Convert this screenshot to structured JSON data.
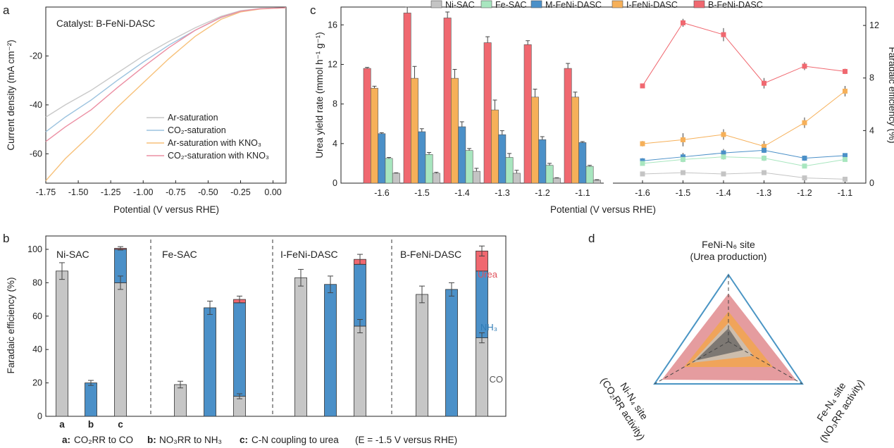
{
  "colors": {
    "ni_sac": "#c4c4c4",
    "fe_sac": "#a8e6bf",
    "m_fe_ni": "#4b90c8",
    "i_fe_ni": "#f6b059",
    "b_fe_ni": "#f06870",
    "ar": "#c9c9c9",
    "co2": "#9cc3df",
    "ar_kno3": "#f7c17a",
    "co2_kno3": "#ec8fa3",
    "co": "#c6c6c6",
    "nh3": "#4b90c8",
    "urea": "#f06870",
    "d_outline": "#4a95c4"
  },
  "panel_a": {
    "label": "a",
    "annotation": "Catalyst: B-FeNi-DASC",
    "chart_data": {
      "type": "line",
      "xlabel": "Potential (V versus RHE)",
      "ylabel": "Current density (mA cm⁻²)",
      "xlim": [
        -1.75,
        0.1
      ],
      "ylim": [
        -72,
        0
      ],
      "xticks": [
        "-1.75",
        "-1.50",
        "-1.25",
        "-1.00",
        "-0.75",
        "-0.50",
        "-0.25",
        "0.00"
      ],
      "yticks": [
        "-20",
        "-40",
        "-60"
      ],
      "series": [
        {
          "name": "Ar-saturation",
          "x": [
            -1.75,
            -1.6,
            -1.4,
            -1.2,
            -1.0,
            -0.8,
            -0.6,
            -0.4,
            -0.25,
            -0.1,
            0.1
          ],
          "y": [
            -45,
            -40,
            -34,
            -27,
            -20,
            -14,
            -8.5,
            -3.8,
            -1.5,
            -0.6,
            -0.3
          ]
        },
        {
          "name": "CO₂-saturation",
          "x": [
            -1.75,
            -1.6,
            -1.4,
            -1.2,
            -1.0,
            -0.8,
            -0.6,
            -0.4,
            -0.25,
            -0.1,
            0.1
          ],
          "y": [
            -51,
            -45,
            -38,
            -30,
            -22.5,
            -15.5,
            -9.5,
            -4.3,
            -1.8,
            -0.7,
            -0.3
          ]
        },
        {
          "name": "Ar-saturation with KNO₃",
          "x": [
            -1.75,
            -1.6,
            -1.4,
            -1.2,
            -1.0,
            -0.8,
            -0.6,
            -0.4,
            -0.25,
            -0.1,
            0.1
          ],
          "y": [
            -71,
            -62,
            -52,
            -41,
            -31,
            -21,
            -12,
            -5,
            -2,
            -0.8,
            -0.3
          ]
        },
        {
          "name": "CO₂-saturation with KNO₃",
          "x": [
            -1.75,
            -1.6,
            -1.4,
            -1.2,
            -1.0,
            -0.8,
            -0.6,
            -0.4,
            -0.25,
            -0.1,
            0.1
          ],
          "y": [
            -55,
            -49,
            -42,
            -33,
            -24.5,
            -16.5,
            -9.5,
            -4.2,
            -1.7,
            -0.7,
            -0.3
          ]
        }
      ]
    }
  },
  "panel_c": {
    "label": "c",
    "xlabel": "Potential (V versus RHE)",
    "legend": [
      "Ni-SAC",
      "Fe-SAC",
      "M-FeNi-DASC",
      "I-FeNi-DASC",
      "B-FeNi-DASC"
    ],
    "chart_data": [
      {
        "type": "bar",
        "ylabel": "Urea yield rate (mmol h⁻¹ g⁻¹)",
        "ylim": [
          0,
          17.8
        ],
        "yticks": [
          "0",
          "4",
          "8",
          "12",
          "16"
        ],
        "categories": [
          "-1.6",
          "-1.5",
          "-1.4",
          "-1.3",
          "-1.2",
          "-1.1"
        ],
        "series": [
          {
            "name": "B-FeNi-DASC",
            "values": [
              11.6,
              17.2,
              16.7,
              14.2,
              14.0,
              11.6
            ],
            "errors": [
              0.1,
              0.6,
              0.6,
              0.6,
              0.4,
              0.5
            ]
          },
          {
            "name": "I-FeNi-DASC",
            "values": [
              9.6,
              10.6,
              10.6,
              7.4,
              8.7,
              8.7
            ],
            "errors": [
              0.2,
              1.2,
              0.9,
              1.0,
              0.8,
              0.5
            ]
          },
          {
            "name": "M-FeNi-DASC",
            "values": [
              5.0,
              5.2,
              5.7,
              4.9,
              4.4,
              4.1
            ],
            "errors": [
              0.1,
              0.3,
              0.5,
              0.4,
              0.3,
              0.1
            ]
          },
          {
            "name": "Fe-SAC",
            "values": [
              2.5,
              2.9,
              3.3,
              2.6,
              1.8,
              1.7
            ],
            "errors": [
              0.1,
              0.2,
              0.2,
              0.4,
              0.2,
              0.1
            ]
          },
          {
            "name": "Ni-SAC",
            "values": [
              1.0,
              1.0,
              1.2,
              1.0,
              0.5,
              0.3
            ],
            "errors": [
              0.05,
              0.1,
              0.3,
              0.3,
              0.05,
              0.05
            ]
          }
        ]
      },
      {
        "type": "line",
        "ylabel": "Faradaic efficiency (%)",
        "ylim": [
          0,
          13.4
        ],
        "yticks": [
          "0",
          "4",
          "8",
          "12"
        ],
        "x": [
          "-1.6",
          "-1.5",
          "-1.4",
          "-1.3",
          "-1.2",
          "-1.1"
        ],
        "series": [
          {
            "name": "B-FeNi-DASC",
            "values": [
              7.4,
              12.2,
              11.3,
              7.6,
              8.9,
              8.5
            ],
            "errors": [
              0.1,
              0.3,
              0.5,
              0.4,
              0.3,
              0.2
            ]
          },
          {
            "name": "I-FeNi-DASC",
            "values": [
              3.0,
              3.3,
              3.7,
              2.8,
              4.6,
              7.0
            ],
            "errors": [
              0.2,
              0.5,
              0.4,
              0.4,
              0.4,
              0.4
            ]
          },
          {
            "name": "M-FeNi-DASC",
            "values": [
              1.7,
              2.0,
              2.3,
              2.5,
              1.9,
              2.1
            ],
            "errors": [
              0.2,
              0.3,
              0.3,
              0.2,
              0.2,
              0.1
            ]
          },
          {
            "name": "Fe-SAC",
            "values": [
              1.5,
              1.8,
              2.0,
              1.9,
              1.3,
              1.8
            ],
            "errors": [
              0.1,
              0.2,
              0.2,
              0.2,
              0.1,
              0.1
            ]
          },
          {
            "name": "Ni-SAC",
            "values": [
              0.7,
              0.8,
              0.7,
              0.8,
              0.4,
              0.3
            ],
            "errors": [
              0.1,
              0.1,
              0.1,
              0.1,
              0.1,
              0.05
            ]
          }
        ]
      }
    ]
  },
  "panel_b": {
    "label": "b",
    "chart_data": {
      "type": "bar",
      "ylabel": "Faradaic efficiency (%)",
      "ylim": [
        0,
        108
      ],
      "yticks": [
        "0",
        "20",
        "40",
        "60",
        "80",
        "100"
      ],
      "groups": [
        "Ni-SAC",
        "Fe-SAC",
        "I-FeNi-DASC",
        "B-FeNi-DASC"
      ],
      "bar_letters": [
        "a",
        "b",
        "c"
      ],
      "stack_labels": [
        "Urea",
        "NH₃",
        "CO"
      ],
      "bars": [
        {
          "group": "Ni-SAC",
          "kind": "a",
          "co": 87,
          "nh3": 0,
          "urea": 0,
          "co_err": 5
        },
        {
          "group": "Ni-SAC",
          "kind": "b",
          "co": 0,
          "nh3": 20,
          "urea": 0,
          "nh3_err": 1.5
        },
        {
          "group": "Ni-SAC",
          "kind": "c",
          "co": 80,
          "nh3": 20,
          "urea": 0.6,
          "co_err": 4,
          "top_err": 1
        },
        {
          "group": "Fe-SAC",
          "kind": "a",
          "co": 19,
          "nh3": 0,
          "urea": 0,
          "co_err": 2
        },
        {
          "group": "Fe-SAC",
          "kind": "b",
          "co": 0,
          "nh3": 65,
          "urea": 0,
          "nh3_err": 4
        },
        {
          "group": "Fe-SAC",
          "kind": "c",
          "co": 12,
          "nh3": 56,
          "urea": 2,
          "co_err": 1.5,
          "top_err": 2
        },
        {
          "group": "I-FeNi-DASC",
          "kind": "a",
          "co": 83,
          "nh3": 0,
          "urea": 0,
          "co_err": 5
        },
        {
          "group": "I-FeNi-DASC",
          "kind": "b",
          "co": 0,
          "nh3": 79,
          "urea": 0,
          "nh3_err": 5
        },
        {
          "group": "I-FeNi-DASC",
          "kind": "c",
          "co": 54,
          "nh3": 37,
          "urea": 3,
          "co_err": 4,
          "top_err": 3
        },
        {
          "group": "B-FeNi-DASC",
          "kind": "a",
          "co": 73,
          "nh3": 0,
          "urea": 0,
          "co_err": 5
        },
        {
          "group": "B-FeNi-DASC",
          "kind": "b",
          "co": 0,
          "nh3": 76,
          "urea": 0,
          "nh3_err": 4
        },
        {
          "group": "B-FeNi-DASC",
          "kind": "c",
          "co": 47,
          "nh3": 40,
          "urea": 12,
          "co_err": 3,
          "top_err": 3
        }
      ],
      "caption": [
        {
          "key": "a:",
          "text": "CO₂RR to CO"
        },
        {
          "key": "b:",
          "text": "NO₃RR to NH₃"
        },
        {
          "key": "c:",
          "text": "C-N coupling to urea"
        }
      ],
      "condition": "(E = -1.5 V versus RHE)"
    }
  },
  "panel_d": {
    "label": "d",
    "top_line1": "FeNi-N₆ site",
    "top_line2": "(Urea production)",
    "left_line1": "Ni-N₄ site",
    "left_line2": "(CO₂RR activity)",
    "right_line1": "Fe-N₄ site",
    "right_line2": "(NO₃RR activity)",
    "chart_data": {
      "type": "radar",
      "axes": [
        "FeNi-N₆ site",
        "Fe-N₄ site",
        "Ni-N₄ site"
      ],
      "series": [
        {
          "values": [
            1.0,
            1.0,
            1.0
          ],
          "color": "#4a95c4"
        },
        {
          "values": [
            0.72,
            0.92,
            0.9
          ],
          "color": "#e08b8e"
        },
        {
          "values": [
            0.45,
            0.6,
            0.6
          ],
          "color": "#f2a64e"
        },
        {
          "values": [
            0.28,
            0.34,
            0.5
          ],
          "color": "#c7c2bb"
        },
        {
          "values": [
            0.2,
            0.2,
            0.45
          ],
          "color": "#6f6c68"
        }
      ]
    }
  }
}
